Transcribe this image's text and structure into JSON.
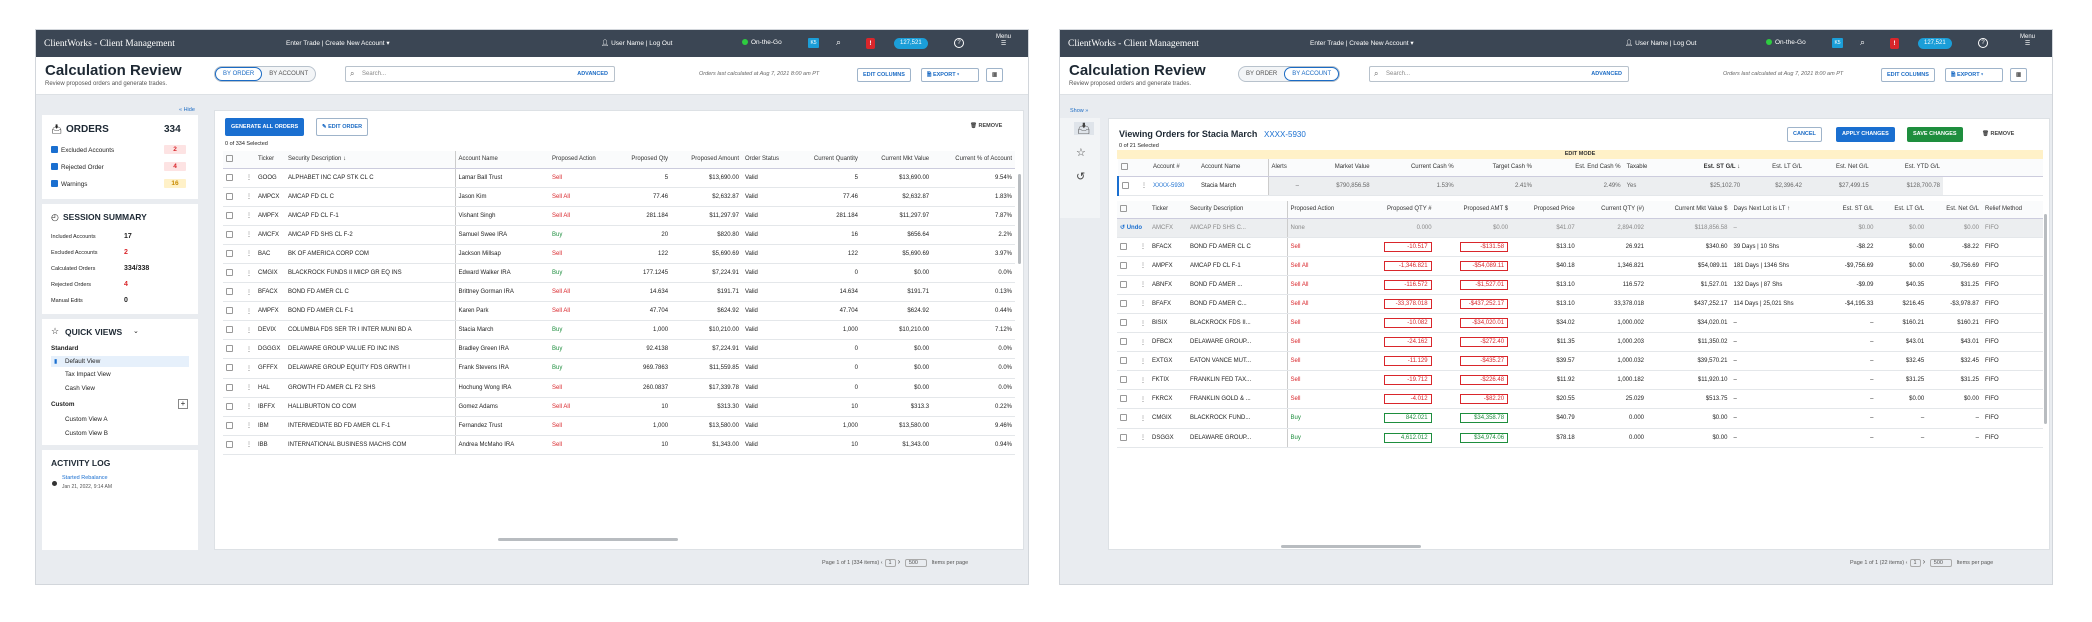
{
  "w1": {
    "app_title": "ClientWorks - Client Management",
    "enter_trade": "Enter Trade | Create New Account ▾",
    "user": "User Name | Log Out",
    "on_the_go": "On-the-Go",
    "k5": "K5",
    "alert": "!",
    "count": "127,521",
    "menu": "Menu",
    "page_title": "Calculation Review",
    "page_sub": "Review proposed orders and generate trades.",
    "seg_by_order": "BY ORDER",
    "seg_by_account": "BY ACCOUNT",
    "search_placeholder": "Search...",
    "advanced": "ADVANCED",
    "last_calc": "Orders last calculated at Aug 7, 2021 8:00 am PT",
    "edit_columns": "EDIT COLUMNS",
    "export": "EXPORT",
    "hide": "« Hide",
    "orders_title": "ORDERS",
    "orders_count": "334",
    "excluded_accounts": "Excluded Accounts",
    "excluded_accounts_n": "2",
    "rejected_order": "Rejected Order",
    "rejected_order_n": "4",
    "warnings": "Warnings",
    "warnings_n": "16",
    "session_title": "SESSION SUMMARY",
    "session": [
      {
        "label": "Included Accounts",
        "value": "17"
      },
      {
        "label": "Excluded Accounts",
        "value": "2"
      },
      {
        "label": "Calculated Orders",
        "value": "334/338"
      },
      {
        "label": "Rejected Orders",
        "value": "4"
      },
      {
        "label": "Manual Edits",
        "value": "0"
      }
    ],
    "qv_title": "QUICK VIEWS",
    "qv_standard": "Standard",
    "qv_default": "Default View",
    "qv_tax": "Tax Impact View",
    "qv_cash": "Cash View",
    "qv_custom": "Custom",
    "qv_ca": "Custom View  A",
    "qv_cb": "Custom View B",
    "activity_title": "ACTIVITY LOG",
    "activity_item": "Started Rebalance",
    "activity_time": "Jan 21, 2022, 9:14 AM",
    "generate": "GENERATE ALL ORDERS",
    "edit_order": "EDIT ORDER",
    "remove": "REMOVE",
    "selected": "0 of 334 Selected",
    "headers": [
      "Ticker",
      "Security Description ↓",
      "Account Name",
      "Proposed Action",
      "Proposed Qty",
      "Proposed Amount",
      "Order Status",
      "Current Quantity",
      "Current Mkt Value",
      "Current % of Account"
    ],
    "rows": [
      [
        "GOOG",
        "ALPHABET INC CAP STK CL C",
        "Lamar Ball Trust",
        "Sell",
        "5",
        "$13,690.00",
        "Valid",
        "5",
        "$13,690.00",
        "9.54%"
      ],
      [
        "AMPCX",
        "AMCAP FD CL C",
        "Jason Kim",
        "Sell All",
        "77.46",
        "$2,632.87",
        "Valid",
        "77.46",
        "$2,632.87",
        "1.83%"
      ],
      [
        "AMPFX",
        "AMCAP FD CL F-1",
        "Vishant Singh",
        "Sell All",
        "281.184",
        "$11,297.97",
        "Valid",
        "281.184",
        "$11,297.97",
        "7.87%"
      ],
      [
        "AMCFX",
        "AMCAP FD SHS CL F-2",
        "Samuel Swee IRA",
        "Buy",
        "20",
        "$820.80",
        "Valid",
        "16",
        "$656.64",
        "2.2%"
      ],
      [
        "BAC",
        "BK OF AMERICA CORP COM",
        "Jackson Millsap",
        "Sell",
        "122",
        "$5,690.69",
        "Valid",
        "122",
        "$5,690.69",
        "3.97%"
      ],
      [
        "CMGIX",
        "BLACKROCK FUNDS II MICP GR EQ INS",
        "Edward Walker IRA",
        "Buy",
        "177.1245",
        "$7,224.91",
        "Valid",
        "0",
        "$0.00",
        "0.0%"
      ],
      [
        "BFACX",
        "BOND FD AMER CL C",
        "Brittney Gorman IRA",
        "Sell All",
        "14.634",
        "$191.71",
        "Valid",
        "14.634",
        "$191.71",
        "0.13%"
      ],
      [
        "AMPFX",
        "BOND FD AMER CL F-1",
        "Karen Park",
        "Sell All",
        "47.704",
        "$624.92",
        "Valid",
        "47.704",
        "$624.92",
        "0.44%"
      ],
      [
        "DEVIX",
        "COLUMBIA FDS SER TR I INTER MUNI BD A",
        "Stacia March",
        "Buy",
        "1,000",
        "$10,210.00",
        "Valid",
        "1,000",
        "$10,210.00",
        "7.12%"
      ],
      [
        "DGGGX",
        "DELAWARE GROUP VALUE FD INC INS",
        "Bradley Green IRA",
        "Buy",
        "92.4138",
        "$7,224.91",
        "Valid",
        "0",
        "$0.00",
        "0.0%"
      ],
      [
        "GFFFX",
        "DELAWARE GROUP EQUITY FDS GRWTH I",
        "Frank Stevens IRA",
        "Buy",
        "969.7863",
        "$11,559.85",
        "Valid",
        "0",
        "$0.00",
        "0.0%"
      ],
      [
        "HAL",
        "GROWTH FD AMER CL F2 SHS",
        "Hochung Wong IRA",
        "Sell",
        "260.0837",
        "$17,339.78",
        "Valid",
        "0",
        "$0.00",
        "0.0%"
      ],
      [
        "IBFFX",
        "HALLIBURTON CO COM",
        "Gomez Adams",
        "Sell All",
        "10",
        "$313.30",
        "Valid",
        "10",
        "$313.3",
        "0.22%"
      ],
      [
        "IBM",
        "INTERMEDIATE BD FD AMER CL F-1",
        "Fernandez Trust",
        "Sell",
        "1,000",
        "$13,580.00",
        "Valid",
        "1,000",
        "$13,580.00",
        "9.46%"
      ],
      [
        "IBB",
        "INTERNATIONAL BUSINESS MACHS COM",
        "Andrea McMaho IRA",
        "Sell",
        "10",
        "$1,343.00",
        "Valid",
        "10",
        "$1,343.00",
        "0.94%"
      ]
    ],
    "page_info": "Page 1 of 1 (334 items)",
    "page_num": "1",
    "per_page": "500",
    "items_per_page": "Items per page"
  },
  "w2": {
    "show": "Show »",
    "viewing": "Viewing Orders for Stacia March",
    "acct_link": "XXXX-5930",
    "cancel": "CANCEL",
    "apply": "APPLY CHANGES",
    "save": "SAVE CHANGES",
    "remove": "REMOVE",
    "selected": "0 of 21 Selected",
    "edit_mode": "EDIT MODE",
    "acct_headers": [
      "Account #",
      "Account Name",
      "Alerts",
      "Market Value",
      "Current Cash %",
      "Target Cash %",
      "Est. End Cash %",
      "Taxable",
      "Est. ST G/L ↓",
      "Est. LT G/L",
      "Est. Net G/L",
      "Est. YTD G/L"
    ],
    "acct_row": [
      "XXXX-5930",
      "Stacia March",
      "–",
      "$790,856.58",
      "1.53%",
      "2.41%",
      "2.49%",
      "Yes",
      "$25,102.70",
      "$2,396.42",
      "$27,499.15",
      "$128,700.78"
    ],
    "headers": [
      "Ticker",
      "Security Description",
      "Proposed Action",
      "Proposed QTY #",
      "Proposed AMT $",
      "Proposed Price",
      "Current QTY (#)",
      "Current Mkt Value $",
      "Days Next Lot is LT ↑",
      "Est. ST G/L",
      "Est. LT G/L",
      "Est. Net G/L",
      "Relief Method"
    ],
    "undo": "Undo",
    "undo_row": [
      "AMCFX",
      "AMCAP FD SHS C...",
      "None",
      "0.000",
      "$0.00",
      "$41.07",
      "2,894.092",
      "$118,856.58",
      "–",
      "$0.00",
      "$0.00",
      "$0.00",
      "FIFO"
    ],
    "rows": [
      [
        "BFACX",
        "BOND FD AMER CL C",
        "Sell",
        "-10.517",
        "-$131.58",
        "$13.10",
        "26.921",
        "$340.60",
        "39 Days | 10 Shs",
        "-$8.22",
        "$0.00",
        "-$8.22",
        "FIFO"
      ],
      [
        "AMPFX",
        "AMCAP FD CL F-1",
        "Sell All",
        "-1,346.821",
        "-$54,089.11",
        "$40.18",
        "1,346.821",
        "$54,089.11",
        "181 Days | 1346 Shs",
        "-$9,756.69",
        "$0.00",
        "-$9,756.69",
        "FIFO"
      ],
      [
        "ABNFX",
        "BOND FD AMER ...",
        "Sell All",
        "-116.572",
        "-$1,527.01",
        "$13.10",
        "116.572",
        "$1,527.01",
        "132 Days | 87 Shs",
        "-$9.09",
        "$40.35",
        "$31.25",
        "FIFO"
      ],
      [
        "BFAFX",
        "BOND FD AMER C...",
        "Sell All",
        "-33,378.018",
        "-$437,252.17",
        "$13.10",
        "33,378.018",
        "$437,252.17",
        "114 Days | 25,021 Shs",
        "-$4,195.33",
        "$216.45",
        "-$3,978.87",
        "FIFO"
      ],
      [
        "BISIX",
        "BLACKROCK FDS II...",
        "Sell",
        "-10.082",
        "-$34,020.01",
        "$34.02",
        "1,000.002",
        "$34,020.01",
        "–",
        "–",
        "$160.21",
        "$160.21",
        "FIFO"
      ],
      [
        "DFBCX",
        "DELAWARE GROUP...",
        "Sell",
        "-24.162",
        "-$272.40",
        "$11.35",
        "1,000.203",
        "$11,350.02",
        "–",
        "–",
        "$43.01",
        "$43.01",
        "FIFO"
      ],
      [
        "EXTGX",
        "EATON VANCE MUT...",
        "Sell",
        "-11.129",
        "-$435.27",
        "$39.57",
        "1,000.032",
        "$39,570.21",
        "–",
        "–",
        "$32.45",
        "$32.45",
        "FIFO"
      ],
      [
        "FKTIX",
        "FRANKLIN FED TAX...",
        "Sell",
        "-19.712",
        "-$226.48",
        "$11.92",
        "1,000.182",
        "$11,920.10",
        "–",
        "–",
        "$31.25",
        "$31.25",
        "FIFO"
      ],
      [
        "FKRCX",
        "FRANKLIN GOLD & ...",
        "Sell",
        "-4.012",
        "-$82.20",
        "$20.55",
        "25.029",
        "$513.75",
        "–",
        "–",
        "$0.00",
        "$0.00",
        "FIFO"
      ],
      [
        "CMGIX",
        "BLACKROCK FUND...",
        "Buy",
        "842.021",
        "$34,358.78",
        "$40.79",
        "0.000",
        "$0.00",
        "–",
        "–",
        "–",
        "–",
        "FIFO"
      ],
      [
        "DSGGX",
        "DELAWARE GROUP...",
        "Buy",
        "4,612.012",
        "$34,974.06",
        "$78.18",
        "0.000",
        "$0.00",
        "–",
        "–",
        "–",
        "–",
        "FIFO"
      ]
    ],
    "page_info": "Page 1 of 1 (22 items)",
    "page_num": "1",
    "per_page": "500",
    "items_per_page": "Items per page"
  }
}
